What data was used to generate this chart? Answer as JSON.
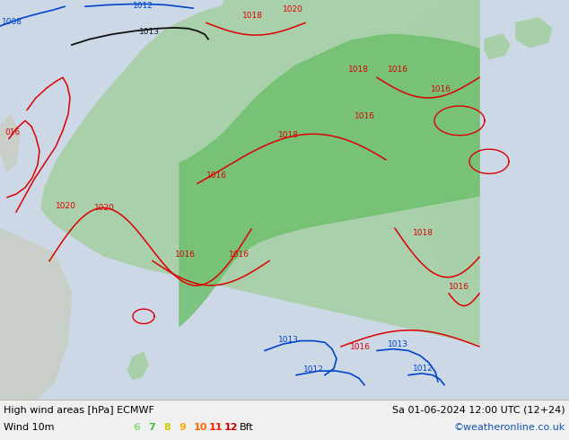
{
  "title_left": "High wind areas [hPa] ECMWF",
  "title_right": "Sa 01-06-2024 12:00 UTC (12+24)",
  "subtitle_left": "Wind 10m",
  "subtitle_right": "©weatheronline.co.uk",
  "bft_nums": [
    "6",
    "7",
    "8",
    "9",
    "10",
    "11",
    "12"
  ],
  "bft_colors": [
    "#88dd88",
    "#44bb44",
    "#cccc00",
    "#ffaa00",
    "#ff6600",
    "#ff2200",
    "#cc0000"
  ],
  "sea_color": "#ccd8e6",
  "land_gray": "#c8cec8",
  "land_green_light": "#a8d0a8",
  "land_green_bright": "#70c070",
  "isobar_red": "#dd0000",
  "isobar_blue": "#0044cc",
  "isobar_black": "#111111",
  "bar_bg": "#f0f0f0",
  "fig_width": 6.34,
  "fig_height": 4.9,
  "dpi": 100
}
